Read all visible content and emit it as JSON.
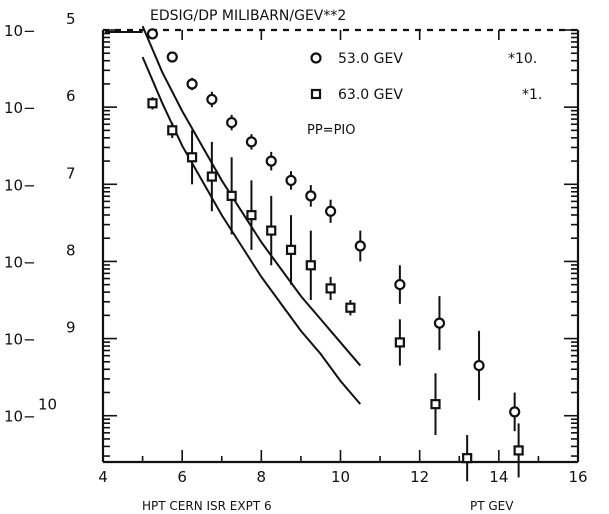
{
  "chart_data": {
    "type": "scatter",
    "title": "EDSIG/DP MILIBARN/GEV**2",
    "subtitle": "PP=PIO",
    "xlabel": "PT GEV",
    "caption": "HPT CERN ISR EXPT 6",
    "yscale": "log",
    "xlim": [
      4,
      16
    ],
    "ylim_exponent": [
      -10.6,
      -5
    ],
    "x_ticks": [
      "4",
      "6",
      "8",
      "10",
      "12",
      "14",
      "16"
    ],
    "y_tick_labels": [
      {
        "base": "10",
        "exp": "5"
      },
      {
        "base": "10",
        "exp": "6"
      },
      {
        "base": "10",
        "exp": "7"
      },
      {
        "base": "10",
        "exp": "8"
      },
      {
        "base": "10",
        "exp": "9"
      },
      {
        "base": "10",
        "exp": "10"
      }
    ],
    "legend_position": "top-right",
    "series": [
      {
        "name": "53.0 GEV",
        "scale": "*10.",
        "marker": "circle",
        "x": [
          5.25,
          5.75,
          6.25,
          6.75,
          7.25,
          7.75,
          8.25,
          8.75,
          9.25,
          9.75,
          10.5,
          11.5,
          12.5,
          13.5,
          14.4
        ],
        "y_exponent": [
          -5.05,
          -5.35,
          -5.7,
          -5.9,
          -6.2,
          -6.45,
          -6.7,
          -6.95,
          -7.15,
          -7.35,
          -7.8,
          -8.3,
          -8.8,
          -9.35,
          -9.95
        ],
        "err_exponent": [
          0.03,
          0.05,
          0.08,
          0.1,
          0.1,
          0.1,
          0.12,
          0.12,
          0.14,
          0.15,
          0.2,
          0.25,
          0.35,
          0.45,
          0.25
        ],
        "fit_exponent": [
          -4.95,
          -5.55,
          -6.05,
          -6.5,
          -6.95,
          -7.35,
          -7.75,
          -8.1,
          -8.45,
          -8.75,
          -9.05,
          -9.35
        ]
      },
      {
        "name": "63.0 GEV",
        "scale": "*1.",
        "marker": "square",
        "x": [
          5.25,
          5.75,
          6.25,
          6.75,
          7.25,
          7.75,
          8.25,
          8.75,
          9.25,
          9.75,
          10.25,
          11.5,
          12.4,
          13.2,
          14.5
        ],
        "y_exponent": [
          -5.95,
          -6.3,
          -6.65,
          -6.9,
          -7.15,
          -7.4,
          -7.6,
          -7.85,
          -8.05,
          -8.35,
          -8.6,
          -9.05,
          -9.85,
          -10.55,
          -10.45
        ],
        "err_exponent": [
          0.08,
          0.1,
          0.35,
          0.45,
          0.5,
          0.45,
          0.45,
          0.45,
          0.45,
          0.15,
          0.1,
          0.3,
          0.4,
          0.3,
          0.35
        ],
        "fit_exponent": [
          -5.35,
          -5.95,
          -6.5,
          -6.95,
          -7.4,
          -7.8,
          -8.2,
          -8.55,
          -8.9,
          -9.2,
          -9.55,
          -9.85
        ]
      }
    ],
    "fit_x": [
      5.0,
      5.5,
      6.0,
      6.5,
      7.0,
      7.5,
      8.0,
      8.5,
      9.0,
      9.5,
      10.0,
      10.5
    ]
  }
}
